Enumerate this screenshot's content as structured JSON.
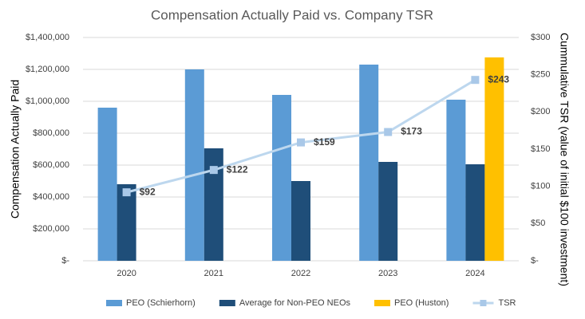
{
  "chart_data": {
    "type": "bar",
    "title": "Compensation Actually Paid vs. Company TSR",
    "y_label": "Compensation Actually Paid",
    "y2_label": "Cummulative TSR (value of initial $100 investment)",
    "categories": [
      "2020",
      "2021",
      "2022",
      "2023",
      "2024"
    ],
    "series": [
      {
        "name": "PEO (Schierhorn)",
        "color": "#5b9bd5",
        "values": [
          960000,
          1200000,
          1040000,
          1230000,
          1010000
        ]
      },
      {
        "name": "Average for Non-PEO NEOs",
        "color": "#1f4e79",
        "values": [
          480000,
          705000,
          500000,
          620000,
          605000
        ]
      },
      {
        "name": "PEO (Huston)",
        "color": "#ffc000",
        "values": [
          null,
          null,
          null,
          null,
          1275000
        ]
      },
      {
        "name": "TSR",
        "color": "#bdd7ee",
        "type": "line",
        "axis": "y2",
        "values": [
          92,
          122,
          159,
          173,
          243
        ],
        "value_labels": [
          "$92",
          "$122",
          "$159",
          "$173",
          "$243"
        ]
      }
    ],
    "ylim": [
      0,
      1400000
    ],
    "yticks": [
      {
        "value": 0,
        "label": "$-"
      },
      {
        "value": 200000,
        "label": "$200,000"
      },
      {
        "value": 400000,
        "label": "$400,000"
      },
      {
        "value": 600000,
        "label": "$600,000"
      },
      {
        "value": 800000,
        "label": "$800,000"
      },
      {
        "value": 1000000,
        "label": "$1,000,000"
      },
      {
        "value": 1200000,
        "label": "$1,200,000"
      },
      {
        "value": 1400000,
        "label": "$1,400,000"
      }
    ],
    "y2lim": [
      0,
      300
    ],
    "y2ticks": [
      {
        "value": 0,
        "label": "$-"
      },
      {
        "value": 50,
        "label": "$50"
      },
      {
        "value": 100,
        "label": "$100"
      },
      {
        "value": 150,
        "label": "$150"
      },
      {
        "value": 200,
        "label": "$200"
      },
      {
        "value": 250,
        "label": "$250"
      },
      {
        "value": 300,
        "label": "$300"
      }
    ],
    "grid": true,
    "legend": "bottom"
  }
}
